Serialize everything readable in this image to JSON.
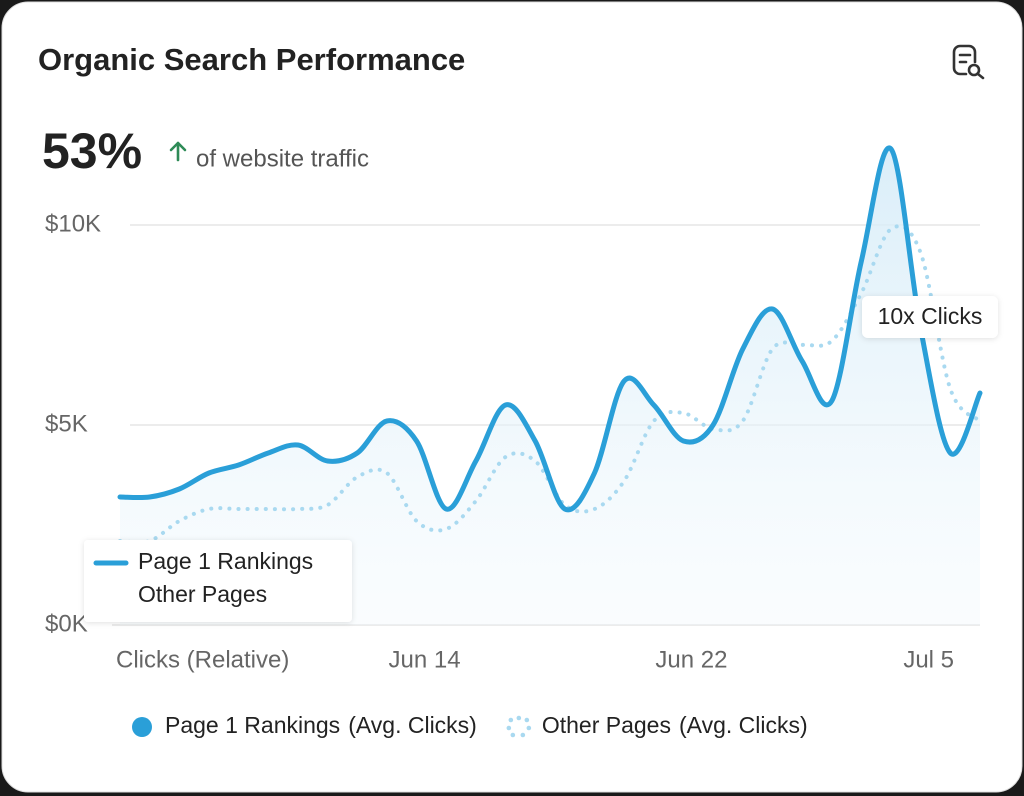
{
  "chart_data": {
    "type": "line",
    "title": "Organic Search Performance",
    "headline": "53%",
    "subtitle": "of website traffic",
    "xlabel": "Clicks (Relative)",
    "annotation": "10x Clicks",
    "legend_note": "(Avg. Clicks)",
    "categories": [
      null,
      null,
      null,
      null,
      null,
      null,
      null,
      null,
      null,
      null,
      "Jun 14",
      null,
      null,
      null,
      null,
      null,
      null,
      null,
      null,
      "Jun 22",
      null,
      null,
      null,
      null,
      null,
      null,
      null,
      "Jul 5",
      null,
      null
    ],
    "series": [
      {
        "name": "Page 1 Rankings",
        "color": "#2a9fd8",
        "style": "solid",
        "values": [
          3200,
          3200,
          3400,
          3800,
          4000,
          4300,
          4500,
          4100,
          4300,
          5100,
          4600,
          2900,
          4100,
          5500,
          4600,
          2900,
          3800,
          6100,
          5500,
          4600,
          5000,
          6900,
          7900,
          6600,
          5600,
          9100,
          11900,
          7400,
          4300,
          5800
        ]
      },
      {
        "name": "Other Pages",
        "color": "#a9d9f0",
        "style": "dotted",
        "values": [
          2100,
          2100,
          2600,
          2900,
          2900,
          2900,
          2900,
          3000,
          3700,
          3800,
          2600,
          2400,
          3100,
          4200,
          4100,
          3000,
          2900,
          3600,
          5100,
          5300,
          4900,
          5100,
          6900,
          7000,
          7100,
          8300,
          9900,
          9300,
          5900,
          5100
        ]
      }
    ],
    "ylim": [
      0,
      12500
    ],
    "yticks": [
      {
        "value": 0,
        "label": "$0K"
      },
      {
        "value": 5000,
        "label": "$5K"
      },
      {
        "value": 10000,
        "label": "$10K"
      }
    ],
    "grid": true,
    "area": true
  }
}
